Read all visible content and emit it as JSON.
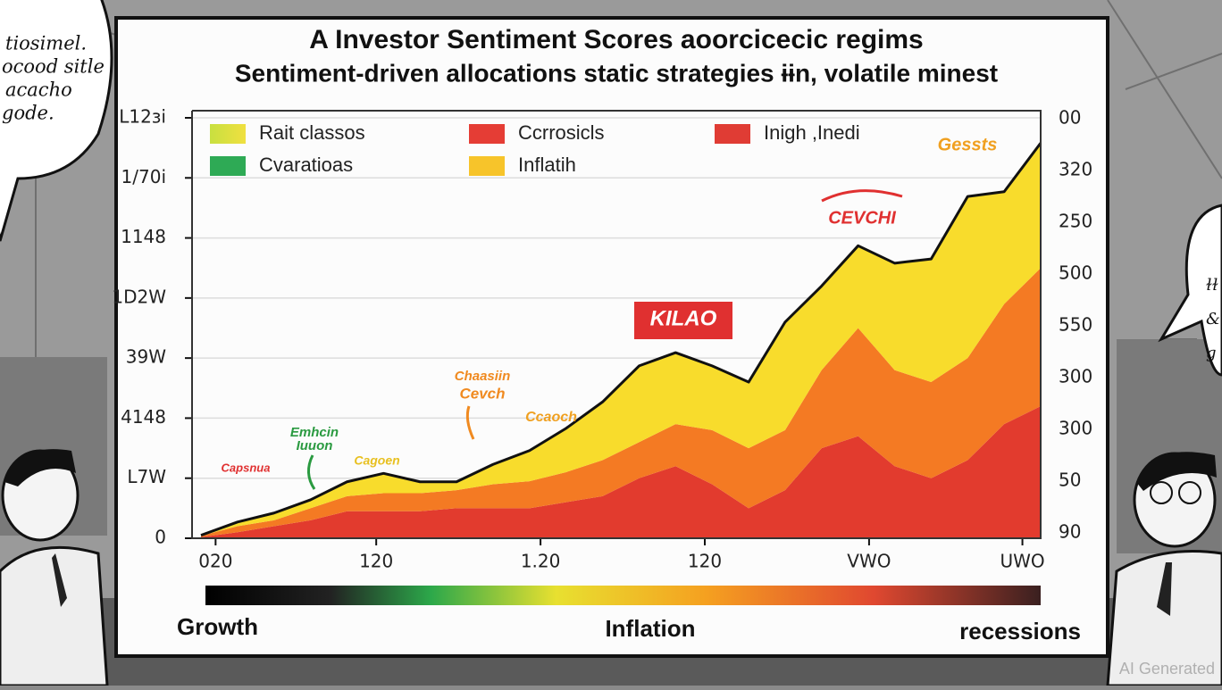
{
  "chart_data": {
    "type": "stacked_area",
    "title": "A Investor Sentiment Scores aoorcicecic regims",
    "subtitle": "Sentiment-driven allocations static strategies ɨɨn, volatile minest",
    "legend": [
      {
        "label": "Rait classos",
        "color": "#b5d334"
      },
      {
        "label": "Cvaratioas",
        "color": "#2eaa55"
      },
      {
        "label": "Ccrrosicls",
        "color": "#e53d35"
      },
      {
        "label": "Inflatih",
        "color": "#f7c42a"
      },
      {
        "label": "Inigh ,Inedi",
        "color": "#e03c34"
      }
    ],
    "x": [
      0,
      1,
      2,
      3,
      4,
      5,
      6,
      7,
      8,
      9,
      10,
      11,
      12,
      13,
      14,
      15,
      16,
      17,
      18,
      19,
      20,
      21,
      22,
      23
    ],
    "xlim": [
      0,
      23
    ],
    "xticks": [
      {
        "value": 0.4,
        "label": "020"
      },
      {
        "value": 4.8,
        "label": "120"
      },
      {
        "value": 9.3,
        "label": "1.20"
      },
      {
        "value": 13.8,
        "label": "120"
      },
      {
        "value": 18.3,
        "label": "VWO"
      },
      {
        "value": 22.5,
        "label": "UWO"
      }
    ],
    "series": [
      {
        "color": "#e23b2e",
        "values": [
          0.02,
          0.1,
          0.2,
          0.3,
          0.45,
          0.45,
          0.45,
          0.5,
          0.5,
          0.5,
          0.6,
          0.7,
          1.0,
          1.2,
          0.9,
          0.5,
          0.8,
          1.5,
          1.7,
          1.2,
          1.0,
          1.3,
          1.9,
          2.2
        ]
      },
      {
        "color": "#f47a23",
        "values": [
          0.02,
          0.1,
          0.1,
          0.2,
          0.25,
          0.3,
          0.3,
          0.3,
          0.4,
          0.45,
          0.5,
          0.6,
          0.6,
          0.7,
          0.9,
          1.0,
          1.0,
          1.3,
          1.8,
          1.6,
          1.6,
          1.7,
          2.0,
          2.3
        ]
      },
      {
        "color": "#f8dc2c",
        "values": [
          0.01,
          0.07,
          0.12,
          0.14,
          0.24,
          0.33,
          0.19,
          0.14,
          0.33,
          0.51,
          0.73,
          0.97,
          1.27,
          1.19,
          1.07,
          1.1,
          1.8,
          1.4,
          1.37,
          1.78,
          2.05,
          2.69,
          1.87,
          2.08
        ]
      }
    ],
    "ylim": [
      0,
      7
    ],
    "yticks": [
      {
        "value": 0,
        "label": "0"
      },
      {
        "value": 1,
        "label": "L7W"
      },
      {
        "value": 2,
        "label": "4148"
      },
      {
        "value": 3,
        "label": "39W"
      },
      {
        "value": 4,
        "label": "1D2W"
      },
      {
        "value": 5,
        "label": "1148"
      },
      {
        "value": 6,
        "label": "1/70i"
      },
      {
        "value": 7,
        "label": "L12ɜi"
      }
    ],
    "y2lim": [
      0,
      8
    ],
    "y2ticks": [
      {
        "value": 0,
        "label": "90"
      },
      {
        "value": 1,
        "label": "50"
      },
      {
        "value": 2,
        "label": "300"
      },
      {
        "value": 3,
        "label": "300"
      },
      {
        "value": 4,
        "label": "550"
      },
      {
        "value": 5,
        "label": "500"
      },
      {
        "value": 6,
        "label": "250"
      },
      {
        "value": 7,
        "label": "320"
      },
      {
        "value": 8,
        "label": "00"
      }
    ],
    "grid": true,
    "annotations": [
      {
        "text": "Gessts",
        "color": "#f0a020"
      },
      {
        "text": "CEVCHI",
        "color": "#e03030"
      },
      {
        "text": "KILAO",
        "color": "#ffffff"
      },
      {
        "text": "Chaasiin",
        "color": "#f08a20"
      },
      {
        "text": "Cevch",
        "color": "#f08a20"
      },
      {
        "text": "Ccaoch",
        "color": "#f0a020"
      },
      {
        "text": "Emhcin",
        "color": "#2a9a40"
      },
      {
        "text": "Iuuon",
        "color": "#2a9a40"
      },
      {
        "text": "Cagoen",
        "color": "#e8c020"
      },
      {
        "text": "Capsnua",
        "color": "#e03030"
      }
    ],
    "scale_labels": [
      "Growth",
      "Inflation",
      "recessions"
    ]
  },
  "speech_bubble_left": [
    "tiosimel.",
    "ocood sitle",
    "acacho",
    "gode."
  ],
  "speech_bubble_right": [
    "ɫɫ",
    "&",
    "g u"
  ],
  "watermark": "AI Generated"
}
